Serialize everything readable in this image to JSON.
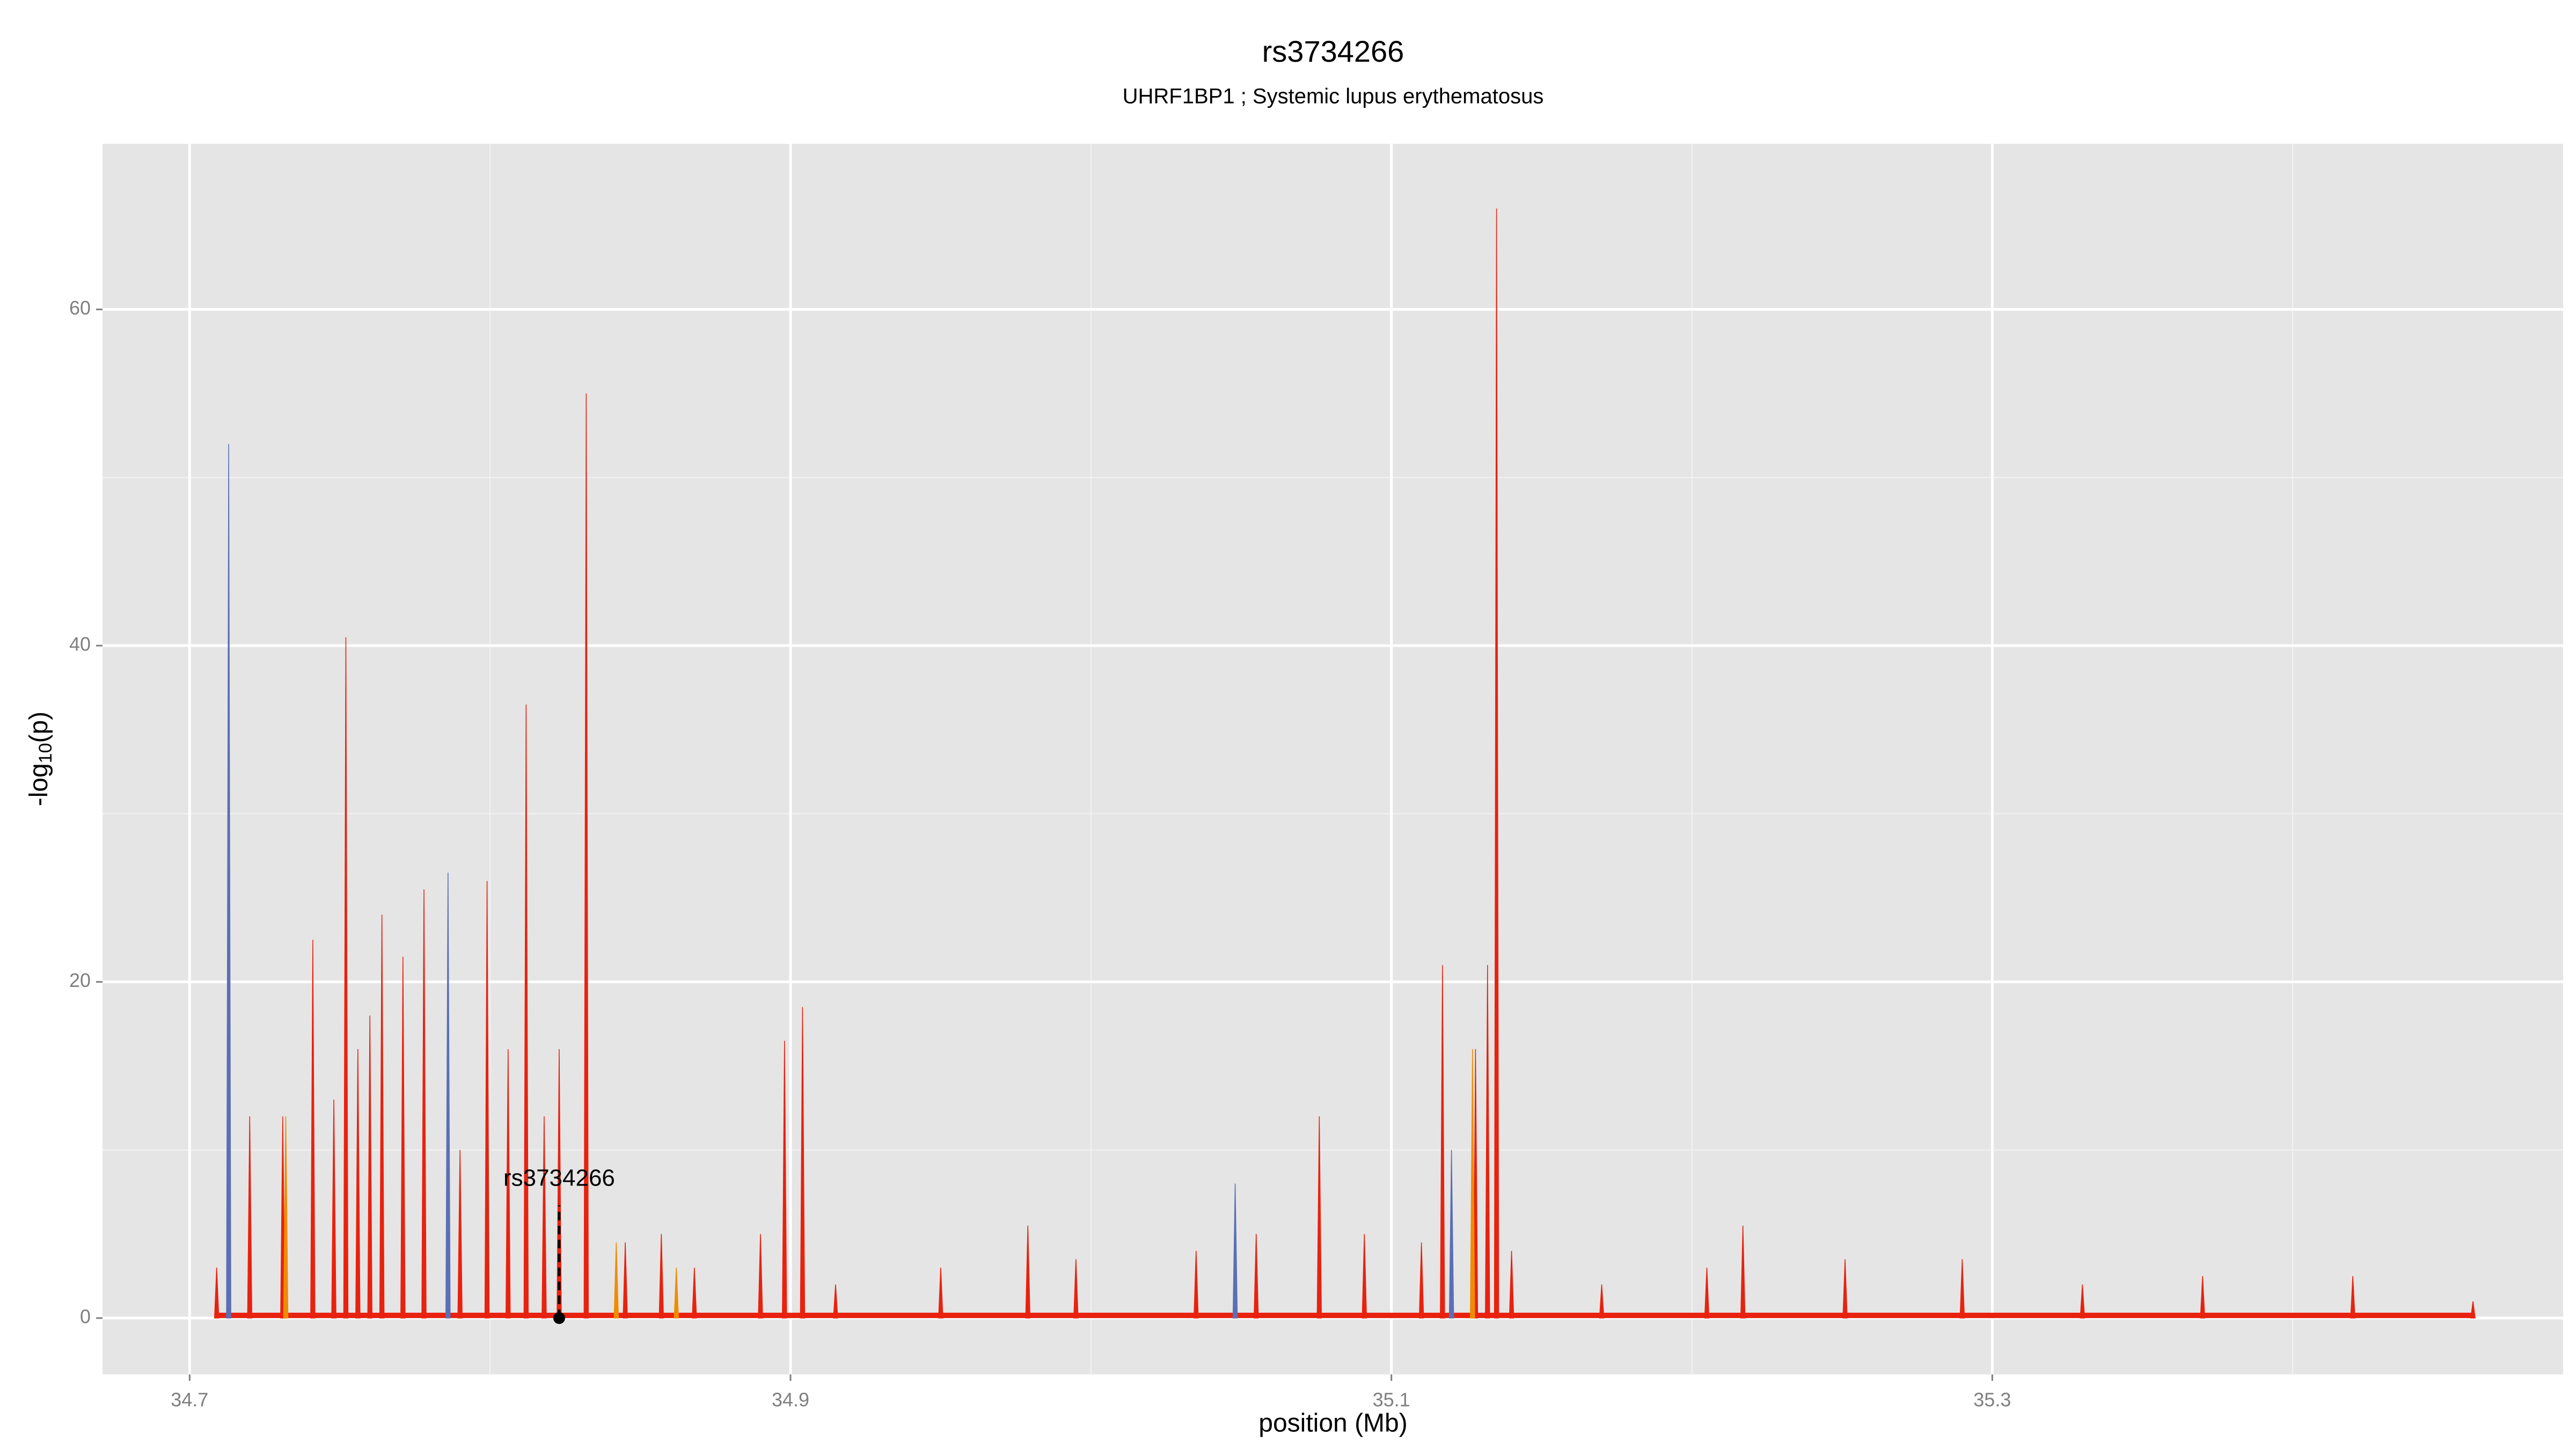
{
  "chart_data": {
    "type": "area",
    "title": "rs3734266",
    "subtitle": "UHRF1BP1 ; Systemic lupus erythematosus",
    "xlabel": "position (Mb)",
    "ylabel": {
      "main": "-log",
      "sub": "10",
      "tail": "(p)"
    },
    "xlim": [
      34.671,
      35.49
    ],
    "ylim": [
      -3.35,
      69.85
    ],
    "xticks": [
      34.7,
      34.9,
      35.1,
      35.3
    ],
    "yticks": [
      0,
      20,
      40,
      60
    ],
    "grid": true,
    "series": [
      {
        "color": "#e8220f",
        "x": [
          34.709,
          34.72,
          34.731,
          34.741,
          34.748,
          34.752,
          34.756,
          34.76,
          34.764,
          34.771,
          34.778,
          34.79,
          34.799,
          34.806,
          34.812,
          34.818,
          34.823,
          34.832,
          34.845,
          34.857,
          34.868,
          34.89,
          34.898,
          34.904,
          34.915,
          34.95,
          34.979,
          34.995,
          35.035,
          35.055,
          35.076,
          35.091,
          35.11,
          35.117,
          35.128,
          35.132,
          35.135,
          35.14,
          35.17,
          35.205,
          35.217,
          35.251,
          35.29,
          35.33,
          35.37,
          35.42,
          35.46
        ],
        "values": [
          3,
          12,
          12,
          22.5,
          13,
          40.5,
          16,
          18,
          24,
          21.5,
          25.5,
          10,
          26,
          16,
          36.5,
          12,
          16,
          55,
          4.5,
          5,
          3,
          5,
          16.5,
          18.5,
          2,
          3,
          5.5,
          3.5,
          4,
          5,
          12,
          5,
          4.5,
          21,
          16,
          21,
          66,
          4,
          2,
          3,
          5.5,
          3.5,
          3.5,
          2,
          2.5,
          2.5,
          1
        ]
      },
      {
        "color": "#5a6fb5",
        "x": [
          34.713,
          34.786,
          35.048,
          35.12
        ],
        "values": [
          52,
          26.5,
          8,
          10
        ]
      },
      {
        "color": "#f08c00",
        "x": [
          34.732,
          34.842,
          34.862,
          35.127
        ],
        "values": [
          12,
          4.5,
          3,
          16
        ]
      }
    ],
    "annotation": {
      "text": "rs3734266",
      "x": 34.823,
      "y": 0
    }
  }
}
